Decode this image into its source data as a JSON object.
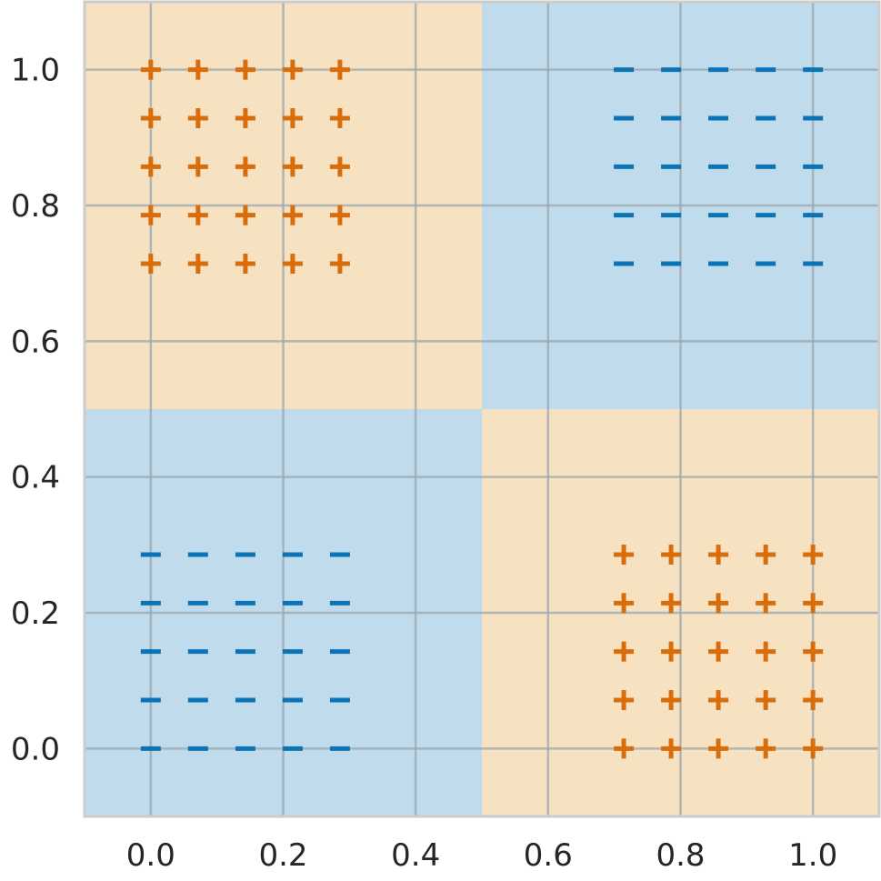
{
  "chart_data": {
    "type": "scatter",
    "title": "",
    "xlabel": "",
    "ylabel": "",
    "xlim": [
      -0.1,
      1.1
    ],
    "ylim": [
      -0.1,
      1.1
    ],
    "grid": true,
    "x_ticks": [
      0.0,
      0.2,
      0.4,
      0.6,
      0.8,
      1.0
    ],
    "y_ticks": [
      0.0,
      0.2,
      0.4,
      0.6,
      0.8,
      1.0
    ],
    "x_tick_labels": [
      "0.0",
      "0.2",
      "0.4",
      "0.6",
      "0.8",
      "1.0"
    ],
    "y_tick_labels": [
      "0.0",
      "0.2",
      "0.4",
      "0.6",
      "0.8",
      "1.0"
    ],
    "regions": [
      {
        "x": [
          -0.1,
          0.5
        ],
        "y": [
          0.5,
          1.1
        ],
        "class": "plus"
      },
      {
        "x": [
          0.5,
          1.1
        ],
        "y": [
          0.5,
          1.1
        ],
        "class": "minus"
      },
      {
        "x": [
          -0.1,
          0.5
        ],
        "y": [
          -0.1,
          0.5
        ],
        "class": "minus"
      },
      {
        "x": [
          0.5,
          1.1
        ],
        "y": [
          -0.1,
          0.5
        ],
        "class": "plus"
      }
    ],
    "series": [
      {
        "marker": "plus",
        "color": "#d96d0b",
        "points": [
          [
            0.0,
            1.0
          ],
          [
            0.0714,
            1.0
          ],
          [
            0.1429,
            1.0
          ],
          [
            0.2143,
            1.0
          ],
          [
            0.2857,
            1.0
          ],
          [
            0.0,
            0.9286
          ],
          [
            0.0714,
            0.9286
          ],
          [
            0.1429,
            0.9286
          ],
          [
            0.2143,
            0.9286
          ],
          [
            0.2857,
            0.9286
          ],
          [
            0.0,
            0.8571
          ],
          [
            0.0714,
            0.8571
          ],
          [
            0.1429,
            0.8571
          ],
          [
            0.2143,
            0.8571
          ],
          [
            0.2857,
            0.8571
          ],
          [
            0.0,
            0.7857
          ],
          [
            0.0714,
            0.7857
          ],
          [
            0.1429,
            0.7857
          ],
          [
            0.2143,
            0.7857
          ],
          [
            0.2857,
            0.7857
          ],
          [
            0.0,
            0.7143
          ],
          [
            0.0714,
            0.7143
          ],
          [
            0.1429,
            0.7143
          ],
          [
            0.2143,
            0.7143
          ],
          [
            0.2857,
            0.7143
          ],
          [
            0.7143,
            0.2857
          ],
          [
            0.7857,
            0.2857
          ],
          [
            0.8571,
            0.2857
          ],
          [
            0.9286,
            0.2857
          ],
          [
            1.0,
            0.2857
          ],
          [
            0.7143,
            0.2143
          ],
          [
            0.7857,
            0.2143
          ],
          [
            0.8571,
            0.2143
          ],
          [
            0.9286,
            0.2143
          ],
          [
            1.0,
            0.2143
          ],
          [
            0.7143,
            0.1429
          ],
          [
            0.7857,
            0.1429
          ],
          [
            0.8571,
            0.1429
          ],
          [
            0.9286,
            0.1429
          ],
          [
            1.0,
            0.1429
          ],
          [
            0.7143,
            0.0714
          ],
          [
            0.7857,
            0.0714
          ],
          [
            0.8571,
            0.0714
          ],
          [
            0.9286,
            0.0714
          ],
          [
            1.0,
            0.0714
          ],
          [
            0.7143,
            0.0
          ],
          [
            0.7857,
            0.0
          ],
          [
            0.8571,
            0.0
          ],
          [
            0.9286,
            0.0
          ],
          [
            1.0,
            0.0
          ]
        ]
      },
      {
        "marker": "minus",
        "color": "#0a74b4",
        "points": [
          [
            0.7143,
            1.0
          ],
          [
            0.7857,
            1.0
          ],
          [
            0.8571,
            1.0
          ],
          [
            0.9286,
            1.0
          ],
          [
            1.0,
            1.0
          ],
          [
            0.7143,
            0.9286
          ],
          [
            0.7857,
            0.9286
          ],
          [
            0.8571,
            0.9286
          ],
          [
            0.9286,
            0.9286
          ],
          [
            1.0,
            0.9286
          ],
          [
            0.7143,
            0.8571
          ],
          [
            0.7857,
            0.8571
          ],
          [
            0.8571,
            0.8571
          ],
          [
            0.9286,
            0.8571
          ],
          [
            1.0,
            0.8571
          ],
          [
            0.7143,
            0.7857
          ],
          [
            0.7857,
            0.7857
          ],
          [
            0.8571,
            0.7857
          ],
          [
            0.9286,
            0.7857
          ],
          [
            1.0,
            0.7857
          ],
          [
            0.7143,
            0.7143
          ],
          [
            0.7857,
            0.7143
          ],
          [
            0.8571,
            0.7143
          ],
          [
            0.9286,
            0.7143
          ],
          [
            1.0,
            0.7143
          ],
          [
            0.0,
            0.2857
          ],
          [
            0.0714,
            0.2857
          ],
          [
            0.1429,
            0.2857
          ],
          [
            0.2143,
            0.2857
          ],
          [
            0.2857,
            0.2857
          ],
          [
            0.0,
            0.2143
          ],
          [
            0.0714,
            0.2143
          ],
          [
            0.1429,
            0.2143
          ],
          [
            0.2143,
            0.2143
          ],
          [
            0.2857,
            0.2143
          ],
          [
            0.0,
            0.1429
          ],
          [
            0.0714,
            0.1429
          ],
          [
            0.1429,
            0.1429
          ],
          [
            0.2143,
            0.1429
          ],
          [
            0.2857,
            0.1429
          ],
          [
            0.0,
            0.0714
          ],
          [
            0.0714,
            0.0714
          ],
          [
            0.1429,
            0.0714
          ],
          [
            0.2143,
            0.0714
          ],
          [
            0.2857,
            0.0714
          ],
          [
            0.0,
            0.0
          ],
          [
            0.0714,
            0.0
          ],
          [
            0.1429,
            0.0
          ],
          [
            0.2143,
            0.0
          ],
          [
            0.2857,
            0.0
          ]
        ]
      }
    ],
    "colors": {
      "plus_region": "#f6e1c1",
      "minus_region": "#bfdbec",
      "frame": "#cccccc",
      "grid": "#9aa7ae"
    }
  }
}
